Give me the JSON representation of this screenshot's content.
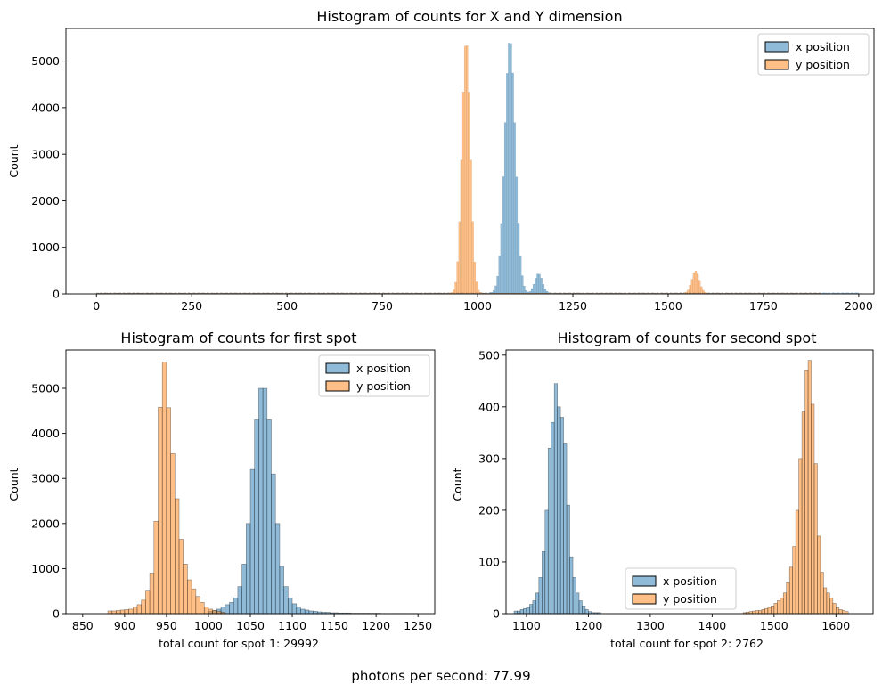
{
  "figure": {
    "footer_text": "photons per second: 77.99"
  },
  "colors": {
    "x_position": "#1f77b4",
    "y_position": "#ff7f0e"
  },
  "chart_data": [
    {
      "type": "bar",
      "title": "Histogram of counts for X and Y dimension",
      "xlabel": "",
      "ylabel": "Count",
      "xlim": [
        -80,
        2040
      ],
      "ylim": [
        0,
        5700
      ],
      "xticks": [
        0,
        250,
        500,
        750,
        1000,
        1250,
        1500,
        1750,
        2000
      ],
      "yticks": [
        0,
        1000,
        2000,
        3000,
        4000,
        5000
      ],
      "legend_position": "top-right",
      "bin_width": 5,
      "series": [
        {
          "name": "x position",
          "peaks": [
            {
              "center": 1085,
              "height": 5450,
              "width": 14,
              "min_x": 1030,
              "max_x": 1140
            },
            {
              "center": 1160,
              "height": 420,
              "width": 10,
              "min_x": 1135,
              "max_x": 1190
            }
          ],
          "baseline": {
            "start": 0,
            "end": 2000,
            "level": 25
          }
        },
        {
          "name": "y position",
          "peaks": [
            {
              "center": 970,
              "height": 5450,
              "width": 11,
              "min_x": 920,
              "max_x": 1020
            },
            {
              "center": 1572,
              "height": 480,
              "width": 10,
              "min_x": 1540,
              "max_x": 1600
            }
          ],
          "baseline": {
            "start": 0,
            "end": 1900,
            "level": 20
          }
        }
      ]
    },
    {
      "type": "bar",
      "title": "Histogram of counts for first spot",
      "xlabel": "total count for spot 1: 29992",
      "ylabel": "Count",
      "xlim": [
        830,
        1270
      ],
      "ylim": [
        0,
        5850
      ],
      "xticks": [
        850,
        900,
        950,
        1000,
        1050,
        1100,
        1150,
        1200,
        1250
      ],
      "yticks": [
        0,
        1000,
        2000,
        3000,
        4000,
        5000
      ],
      "legend_position": "top-right",
      "bin_width": 5,
      "series": [
        {
          "name": "x position",
          "bin_start": 1000,
          "values": [
            50,
            70,
            100,
            150,
            200,
            250,
            350,
            600,
            1100,
            2000,
            3200,
            4300,
            5000,
            5000,
            4300,
            3100,
            2000,
            1050,
            600,
            350,
            220,
            150,
            100,
            80,
            60,
            50,
            40,
            30,
            30,
            20,
            20,
            15,
            15,
            15,
            10,
            10,
            10,
            10,
            10,
            10,
            10,
            5,
            5,
            5,
            5,
            5,
            5,
            5,
            5,
            5
          ]
        },
        {
          "name": "y position",
          "bin_start": 880,
          "values": [
            60,
            60,
            70,
            80,
            90,
            100,
            150,
            200,
            300,
            500,
            900,
            2050,
            4580,
            5580,
            4570,
            3550,
            2550,
            1650,
            1100,
            750,
            550,
            380,
            250,
            150,
            100,
            70,
            50,
            30
          ]
        }
      ]
    },
    {
      "type": "bar",
      "title": "Histogram of counts for second spot",
      "xlabel": "total count for spot 2: 2762",
      "ylabel": "Count",
      "xlim": [
        1067,
        1660
      ],
      "ylim": [
        0,
        510
      ],
      "xticks": [
        1100,
        1200,
        1300,
        1400,
        1500,
        1600
      ],
      "yticks": [
        0,
        100,
        200,
        300,
        400,
        500
      ],
      "legend_position": "bottom-center",
      "bin_width": 5,
      "series": [
        {
          "name": "x position",
          "bin_start": 1080,
          "values": [
            5,
            5,
            8,
            10,
            12,
            18,
            25,
            40,
            70,
            120,
            200,
            320,
            370,
            445,
            400,
            380,
            330,
            210,
            110,
            70,
            40,
            25,
            15,
            8,
            4,
            2,
            2,
            2
          ]
        },
        {
          "name": "y position",
          "bin_start": 1450,
          "values": [
            2,
            3,
            4,
            5,
            6,
            6,
            8,
            10,
            12,
            15,
            20,
            25,
            30,
            40,
            60,
            90,
            130,
            200,
            300,
            390,
            470,
            490,
            405,
            290,
            150,
            80,
            50,
            40,
            30,
            20,
            12,
            8,
            6,
            4
          ]
        }
      ]
    }
  ]
}
